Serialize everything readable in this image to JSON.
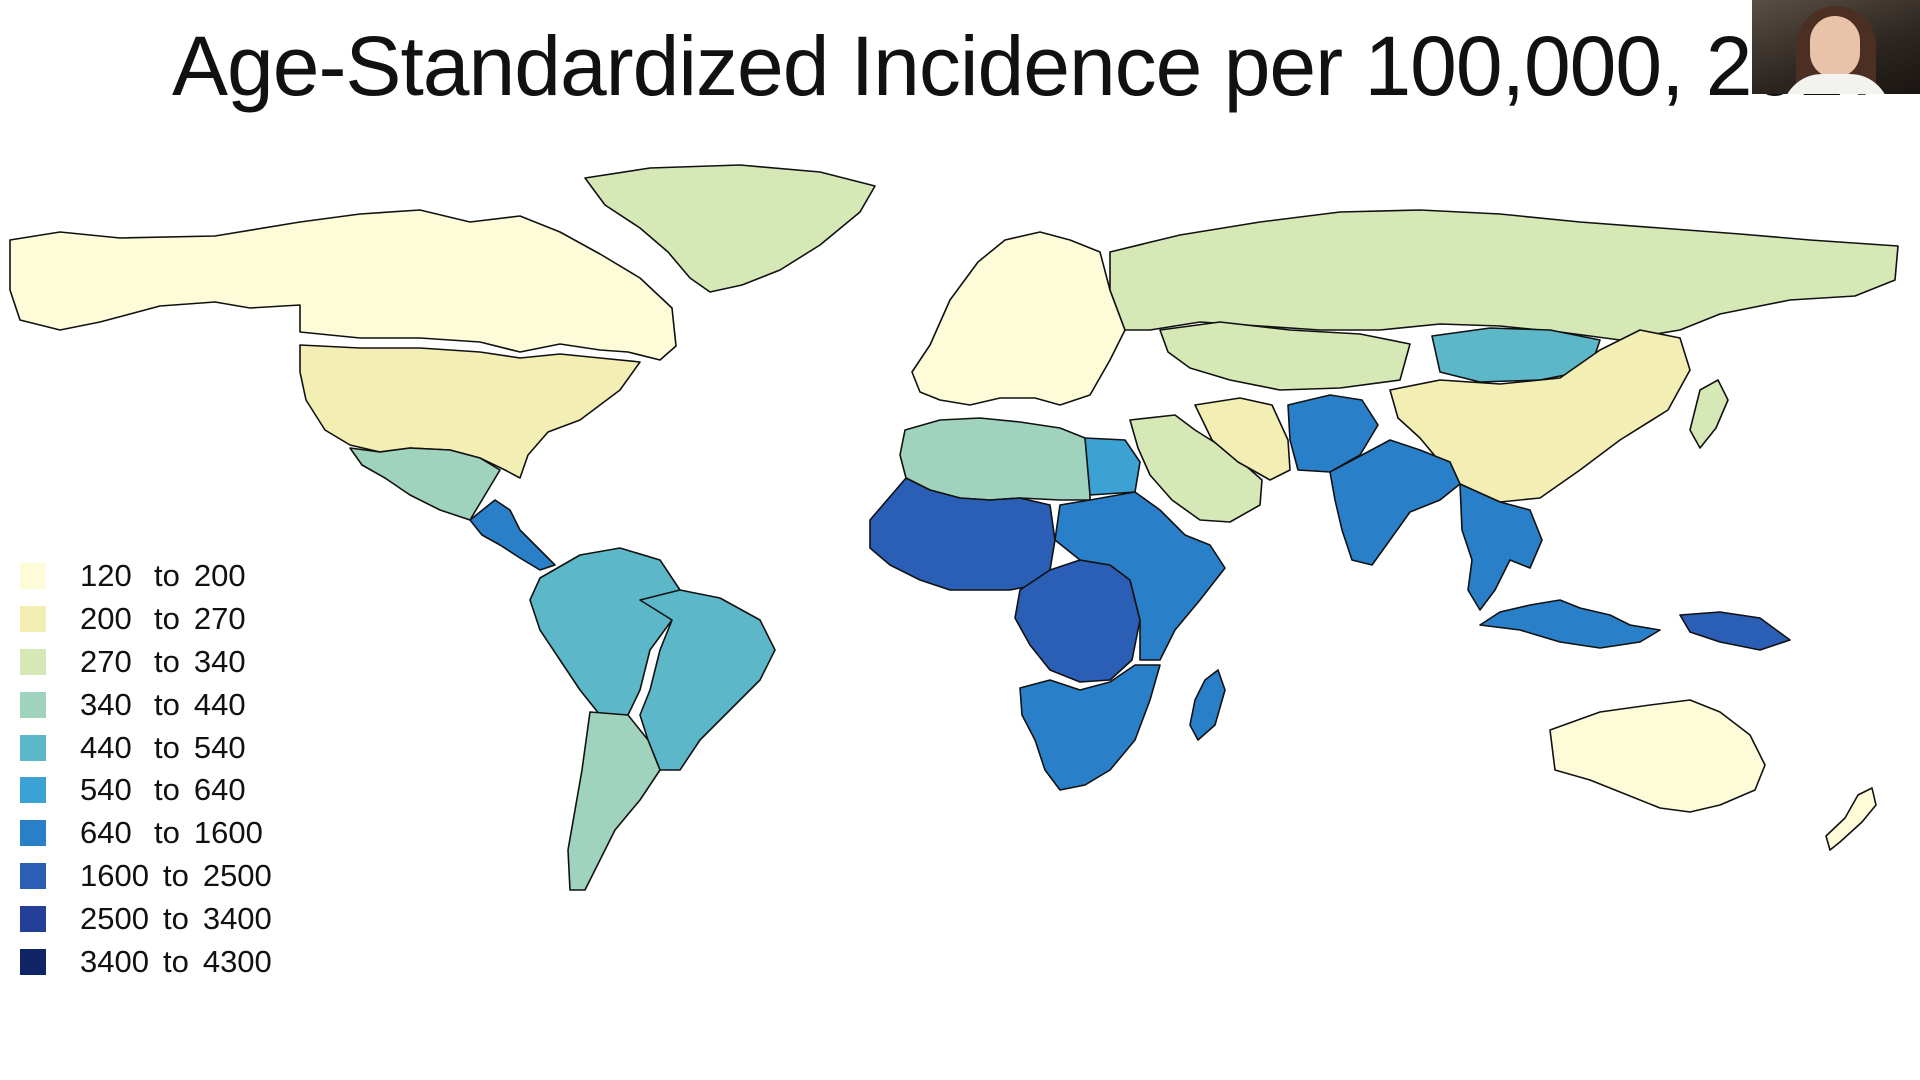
{
  "slide": {
    "title": "Age-Standardized Incidence per 100,000, 2017"
  },
  "legend": {
    "items": [
      {
        "low": "120",
        "to": "to",
        "high": "200",
        "color": "#fdfbd8"
      },
      {
        "low": "200",
        "to": "to",
        "high": "270",
        "color": "#f3efb4"
      },
      {
        "low": "270",
        "to": "to",
        "high": "340",
        "color": "#d5e8b6"
      },
      {
        "low": "340",
        "to": "to",
        "high": "440",
        "color": "#9fd3bd"
      },
      {
        "low": "440",
        "to": "to",
        "high": "540",
        "color": "#5cb8c8"
      },
      {
        "low": "540",
        "to": "to",
        "high": "640",
        "color": "#3ba2d3"
      },
      {
        "low": "640",
        "to": "to",
        "high": "1600",
        "color": "#2a80c8"
      },
      {
        "low": "1600",
        "to": "to",
        "high": "2500",
        "color": "#2a5fb5"
      },
      {
        "low": "2500",
        "to": "to",
        "high": "3400",
        "color": "#243f98"
      },
      {
        "low": "3400",
        "to": "to",
        "high": "4300",
        "color": "#0f2566"
      }
    ]
  },
  "regions": [
    {
      "id": "north-america",
      "category": "120 to 200"
    },
    {
      "id": "usa",
      "category": "200 to 270"
    },
    {
      "id": "greenland",
      "category": "270 to 340"
    },
    {
      "id": "europe",
      "category": "120 to 200"
    },
    {
      "id": "russia",
      "category": "270 to 340"
    },
    {
      "id": "central-asia",
      "category": "270 to 340"
    },
    {
      "id": "china",
      "category": "200 to 270"
    },
    {
      "id": "mongolia",
      "category": "440 to 540"
    },
    {
      "id": "middle-east",
      "category": "270 to 340"
    },
    {
      "id": "iran",
      "category": "200 to 270"
    },
    {
      "id": "afghanistan-pakistan",
      "category": "640 to 1600"
    },
    {
      "id": "south-asia",
      "category": "640 to 1600"
    },
    {
      "id": "southeast-asia",
      "category": "640 to 1600"
    },
    {
      "id": "indonesia",
      "category": "640 to 1600"
    },
    {
      "id": "papua",
      "category": "1600 to 2500"
    },
    {
      "id": "north-africa",
      "category": "340 to 440"
    },
    {
      "id": "egypt",
      "category": "540 to 640"
    },
    {
      "id": "west-africa",
      "category": "1600 to 2500"
    },
    {
      "id": "central-africa",
      "category": "1600 to 2500"
    },
    {
      "id": "east-africa",
      "category": "640 to 1600"
    },
    {
      "id": "southern-africa",
      "category": "640 to 1600"
    },
    {
      "id": "madagascar",
      "category": "640 to 1600"
    },
    {
      "id": "mexico",
      "category": "340 to 440"
    },
    {
      "id": "central-america",
      "category": "640 to 1600"
    },
    {
      "id": "brazil",
      "category": "440 to 540"
    },
    {
      "id": "andes",
      "category": "440 to 540"
    },
    {
      "id": "southern-cone",
      "category": "340 to 440"
    },
    {
      "id": "australia",
      "category": "120 to 200"
    },
    {
      "id": "japan",
      "category": "270 to 340"
    },
    {
      "id": "new-zealand",
      "category": "120 to 200"
    }
  ]
}
